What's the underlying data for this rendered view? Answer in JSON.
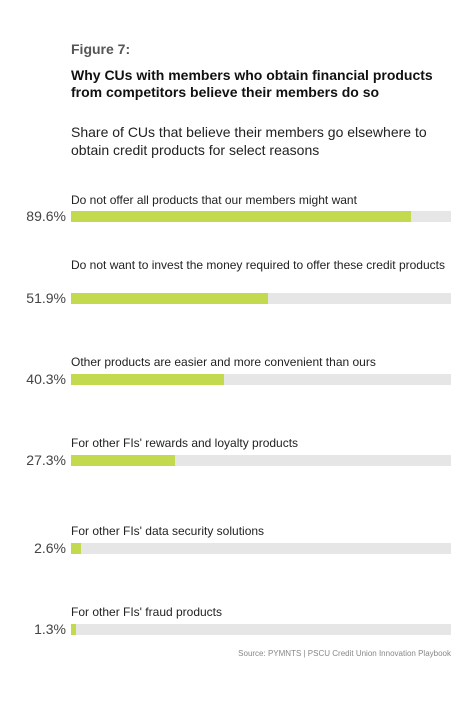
{
  "figure_label": "Figure 7:",
  "title": "Why CUs with members who obtain financial products from competitors believe their members do so",
  "subtitle": "Share of CUs that believe their members go elsewhere to obtain credit products for select reasons",
  "source": "Source: PYMNTS | PSCU Credit Union Innovation Playbook",
  "colors": {
    "bar_fill": "#c3d94e",
    "bar_track": "#e6e6e6"
  },
  "chart_data": {
    "type": "bar",
    "orientation": "horizontal",
    "title": "Why CUs with members who obtain financial products from competitors believe their members do so",
    "subtitle": "Share of CUs that believe their members go elsewhere to obtain credit products for select reasons",
    "xlim": [
      0,
      100
    ],
    "grid": false,
    "categories": [
      "Do not offer all products that our members might want",
      "Do not want to invest the money required to offer these credit products",
      "Other products are easier and more convenient than ours",
      "For other FIs' rewards and loyalty products",
      "For other FIs' data security solutions",
      "For other FIs' fraud products"
    ],
    "values": [
      89.6,
      51.9,
      40.3,
      27.3,
      2.6,
      1.3
    ],
    "value_labels": [
      "89.6%",
      "51.9%",
      "40.3%",
      "27.3%",
      "2.6%",
      "1.3%"
    ]
  }
}
